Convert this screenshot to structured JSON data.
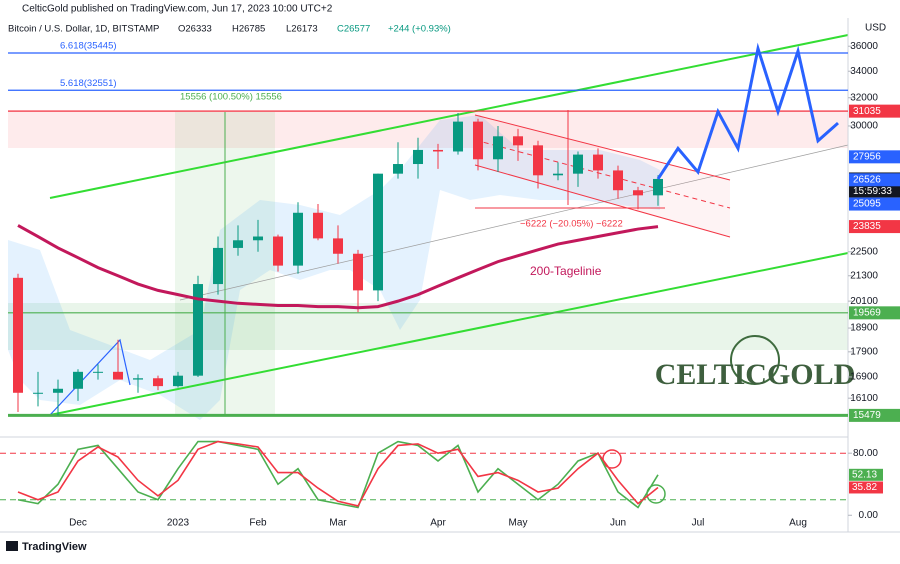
{
  "header": {
    "publisher": "CelticGold published on TradingView.com, Jun 17, 2023 10:00 UTC+2",
    "symbol": "Bitcoin / U.S. Dollar, 1D, BITSTAMP",
    "open": "O26333",
    "high": "H26785",
    "low": "L26173",
    "close": "C26577",
    "change": "+244 (+0.93%)",
    "currency": "USD"
  },
  "footer": {
    "brand": "TradingView"
  },
  "watermark": "CELTICGOLD",
  "chart_data": [
    {
      "type": "candlestick",
      "log_scale": true,
      "categories": [
        null,
        null,
        null,
        "Dec",
        null,
        null,
        null,
        null,
        "2023",
        null,
        null,
        null,
        "Feb",
        null,
        null,
        null,
        "Mar",
        null,
        null,
        null,
        null,
        "Apr",
        null,
        null,
        null,
        "May",
        null,
        null,
        null,
        null,
        "Jun",
        null,
        null,
        null,
        "Jul",
        null,
        null,
        null,
        null,
        "Aug",
        null,
        null
      ],
      "open": [
        21200,
        16300,
        16300,
        16450,
        17100,
        17100,
        16800,
        16850,
        16550,
        16950,
        20900,
        22700,
        23100,
        23300,
        21800,
        24600,
        23200,
        22400,
        20600,
        26900,
        27500,
        28400,
        28300,
        30300,
        27800,
        29300,
        28700,
        26800,
        26900,
        28100,
        27100,
        25900,
        25600,
        null,
        null,
        null,
        null,
        null,
        null,
        null,
        null,
        null
      ],
      "high": [
        21400,
        17100,
        16800,
        17200,
        17400,
        18400,
        17000,
        16950,
        17100,
        21300,
        23300,
        23900,
        24200,
        23400,
        25200,
        25100,
        23900,
        22600,
        26900,
        28900,
        29200,
        28800,
        30900,
        30500,
        30000,
        29800,
        29000,
        27600,
        28300,
        28500,
        27400,
        26100,
        26800,
        null,
        null,
        null,
        null,
        null,
        null,
        null,
        null,
        null
      ],
      "low": [
        15600,
        15800,
        15480,
        16000,
        16800,
        16900,
        16300,
        16400,
        16500,
        16900,
        20400,
        22300,
        22500,
        21500,
        21400,
        23100,
        21900,
        19600,
        20100,
        26600,
        26600,
        27200,
        28100,
        27100,
        27000,
        27700,
        26000,
        26500,
        26100,
        26600,
        25400,
        24800,
        25000,
        null,
        null,
        null,
        null,
        null,
        null,
        null,
        null,
        null
      ],
      "close": [
        16300,
        16300,
        16450,
        17100,
        17100,
        16800,
        16850,
        16550,
        16950,
        20900,
        22700,
        23100,
        23300,
        21800,
        24600,
        23200,
        22400,
        20600,
        26900,
        27500,
        28400,
        28300,
        30300,
        27800,
        29300,
        28700,
        26800,
        26900,
        28100,
        27100,
        25900,
        25600,
        26577,
        null,
        null,
        null,
        null,
        null,
        null,
        null,
        null,
        null
      ],
      "up_color": "#089981",
      "down_color": "#f23645",
      "series": [
        {
          "name": "200-Tagelinie",
          "color": "#c2185b",
          "values": [
            23900,
            23300,
            22700,
            22200,
            21700,
            21300,
            20900,
            20600,
            20400,
            20200,
            20100,
            20000,
            19950,
            19900,
            19900,
            19850,
            19850,
            19800,
            19850,
            20100,
            20400,
            20800,
            21200,
            21600,
            22000,
            22300,
            22600,
            22900,
            23100,
            23300,
            23500,
            23700,
            23835,
            null,
            null,
            null,
            null,
            null,
            null,
            null,
            null,
            null
          ]
        },
        {
          "color": "#2962ff",
          "values": [
            null,
            null,
            null,
            null,
            null,
            null,
            null,
            null,
            null,
            null,
            null,
            null,
            null,
            null,
            null,
            null,
            null,
            null,
            null,
            null,
            null,
            null,
            null,
            null,
            null,
            null,
            null,
            null,
            null,
            null,
            null,
            null,
            26577,
            28500,
            27000,
            31000,
            28500,
            35800,
            31000,
            35600,
            29000,
            30200
          ]
        }
      ],
      "ylim": [
        14800,
        38400
      ],
      "yticks": [
        16100,
        16900,
        17900,
        18900,
        20100,
        21300,
        22500,
        30000,
        32000,
        34000,
        36000
      ],
      "levels": [
        {
          "value": 35445,
          "label": "6.618(35445)",
          "color": "#2962ff"
        },
        {
          "value": 32551,
          "label": "5.618(32551)",
          "color": "#2962ff"
        },
        {
          "value": 31035,
          "color": "#f23645"
        },
        {
          "value": 19569,
          "color": "#4caf50"
        },
        {
          "value": 15479,
          "color": "#4caf50"
        }
      ],
      "price_badges": [
        {
          "value": 31035,
          "color": "#f23645"
        },
        {
          "value": 27956,
          "color": "#2962ff"
        },
        {
          "value": 26577,
          "color": "#131722"
        },
        {
          "value": 26526,
          "color": "#2962ff"
        },
        {
          "value": 25095,
          "color": "#2962ff"
        },
        {
          "value": 23835,
          "color": "#f23645"
        },
        {
          "value": 19569,
          "color": "#4caf50"
        },
        {
          "value": 15479,
          "color": "#4caf50"
        }
      ],
      "countdown": "15:59:33",
      "measure_up": "15556 (100.50%) 15556",
      "measure_down": "−6222 (−20.05%) −6222"
    },
    {
      "type": "line",
      "series": [
        {
          "color": "#4caf50",
          "values": [
            20,
            15,
            40,
            85,
            90,
            60,
            30,
            20,
            60,
            95,
            95,
            90,
            85,
            40,
            60,
            20,
            15,
            10,
            80,
            95,
            90,
            70,
            90,
            30,
            60,
            40,
            20,
            40,
            70,
            80,
            30,
            10,
            52.13
          ]
        },
        {
          "color": "#f23645",
          "values": [
            30,
            20,
            30,
            70,
            88,
            75,
            45,
            25,
            45,
            85,
            95,
            92,
            88,
            55,
            55,
            35,
            18,
            12,
            60,
            90,
            92,
            80,
            85,
            50,
            55,
            45,
            30,
            35,
            60,
            80,
            45,
            15,
            35.82
          ]
        }
      ],
      "ylim": [
        -19,
        97
      ],
      "yticks": [
        {
          "value": 80,
          "label": "80.00"
        },
        {
          "value": 0,
          "label": "0.00"
        }
      ],
      "bands": [
        {
          "value": 80,
          "color": "#f23645"
        },
        {
          "value": 20,
          "color": "#4caf50"
        }
      ]
    }
  ]
}
